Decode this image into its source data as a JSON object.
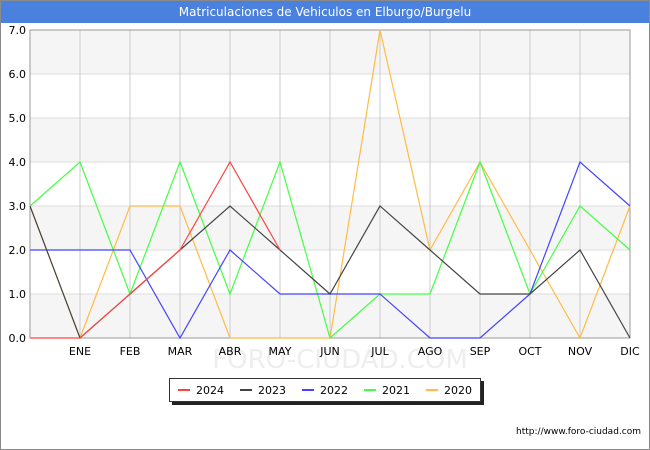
{
  "chart_data": {
    "type": "line",
    "title": "Matriculaciones de Vehiculos en Elburgo/Burgelu",
    "xlabel": "",
    "ylabel": "",
    "ylim": [
      0,
      7
    ],
    "yticks": [
      "0.0",
      "1.0",
      "2.0",
      "3.0",
      "4.0",
      "5.0",
      "6.0",
      "7.0"
    ],
    "categories": [
      "",
      "ENE",
      "FEB",
      "MAR",
      "ABR",
      "MAY",
      "JUN",
      "JUL",
      "AGO",
      "SEP",
      "OCT",
      "NOV",
      "DIC"
    ],
    "grid": true,
    "legend_position": "bottom",
    "series": [
      {
        "name": "2024",
        "color": "#ff4444",
        "values": [
          0,
          0,
          1,
          2,
          4,
          2,
          null,
          null,
          null,
          null,
          null,
          null,
          null
        ]
      },
      {
        "name": "2023",
        "color": "#444444",
        "values": [
          3,
          0,
          1,
          2,
          3,
          2,
          1,
          3,
          2,
          1,
          1,
          2,
          0
        ]
      },
      {
        "name": "2022",
        "color": "#4444ff",
        "values": [
          2,
          2,
          2,
          0,
          2,
          1,
          1,
          1,
          0,
          0,
          1,
          4,
          3
        ]
      },
      {
        "name": "2021",
        "color": "#44ff44",
        "values": [
          3,
          4,
          1,
          4,
          1,
          4,
          0,
          1,
          1,
          4,
          1,
          3,
          2
        ]
      },
      {
        "name": "2020",
        "color": "#ffbb44",
        "values": [
          3,
          0,
          3,
          3,
          0,
          0,
          0,
          7,
          2,
          4,
          2,
          0,
          3
        ]
      }
    ]
  },
  "watermark": "FORO-CIUDAD.COM",
  "footer": {
    "url": "http://www.foro-ciudad.com"
  }
}
